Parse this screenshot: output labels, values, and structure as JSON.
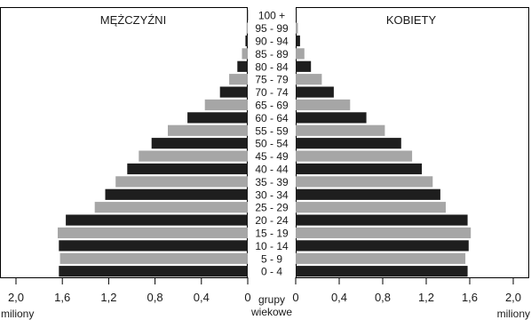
{
  "chart_data": {
    "type": "bar",
    "subtype": "population-pyramid",
    "panel_labels": {
      "left": "MĘŻCZYŹNI",
      "right": "KOBIETY"
    },
    "center_label": [
      "grupy",
      "wiekowe"
    ],
    "unit_label": "miliony",
    "xlim": [
      0,
      2.0
    ],
    "x_ticks": [
      "2,0",
      "1,6",
      "1,2",
      "0,8",
      "0,4",
      "0"
    ],
    "x_ticks_right": [
      "0",
      "0,4",
      "0,8",
      "1,2",
      "1,6",
      "2,0"
    ],
    "categories": [
      "100 +",
      "95 - 99",
      "90 - 94",
      "85 - 89",
      "80 - 84",
      "75 - 79",
      "70 - 74",
      "65 - 69",
      "60 - 64",
      "55 - 59",
      "50 - 54",
      "45 - 49",
      "40 - 44",
      "35 - 39",
      "30 - 34",
      "25 - 29",
      "20 - 24",
      "15 - 19",
      "10 - 14",
      "5 - 9",
      "0 - 4"
    ],
    "series": [
      {
        "name": "MĘŻCZYŹNI",
        "values": [
          0.005,
          0.01,
          0.02,
          0.05,
          0.09,
          0.16,
          0.24,
          0.37,
          0.52,
          0.69,
          0.83,
          0.94,
          1.04,
          1.14,
          1.23,
          1.32,
          1.57,
          1.64,
          1.63,
          1.62,
          1.63
        ]
      },
      {
        "name": "KOBIETY",
        "values": [
          0.01,
          0.02,
          0.04,
          0.08,
          0.14,
          0.24,
          0.35,
          0.5,
          0.65,
          0.82,
          0.97,
          1.07,
          1.16,
          1.26,
          1.33,
          1.38,
          1.58,
          1.61,
          1.59,
          1.56,
          1.58
        ]
      }
    ],
    "colors": {
      "dark": "#1e1e1e",
      "light": "#a6a6a6"
    },
    "grid": false
  }
}
